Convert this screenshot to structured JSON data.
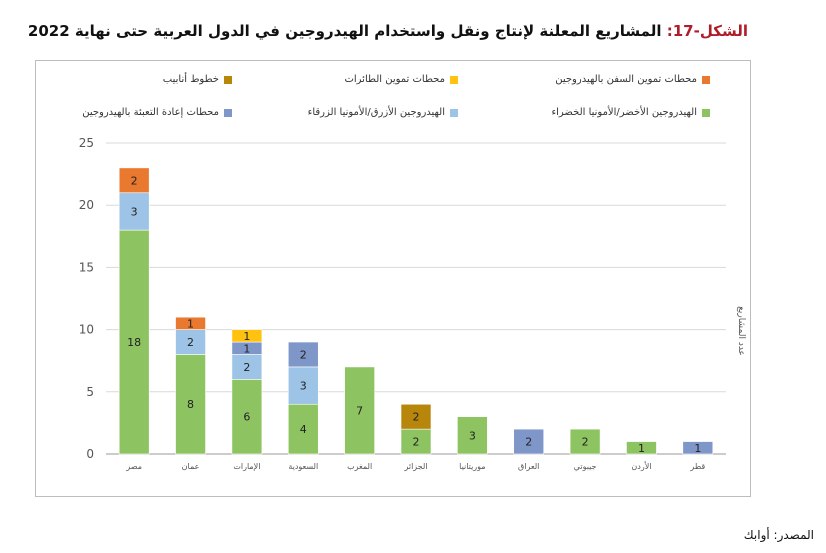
{
  "title": {
    "fig_label": "الشكل-17:",
    "text": "المشاريع المعلنة لإنتاج ونقل واستخدام الهيدروجين في الدول العربية حتى نهاية 2022"
  },
  "source": "المصدر: أوابك",
  "chart_data": {
    "type": "bar",
    "stacked": true,
    "ylabel": "عدد المشاريع",
    "ylim": [
      0,
      25
    ],
    "yticks": [
      0,
      5,
      10,
      15,
      20,
      25
    ],
    "grid": true,
    "legend_position": "top",
    "categories": [
      "مصر",
      "عمان",
      "الإمارات",
      "السعودية",
      "المغرب",
      "الجزائر",
      "موريتانيا",
      "العراق",
      "جيبوتي",
      "الأردن",
      "قطر"
    ],
    "series": [
      {
        "name": "الهيدروجين الأخضر/الأمونيا الخضراء",
        "color": "#8dc461",
        "values": [
          18,
          8,
          6,
          4,
          7,
          2,
          3,
          0,
          2,
          1,
          0
        ]
      },
      {
        "name": "الهيدروجين الأزرق/الأمونيا الزرقاء",
        "color": "#9dc3e6",
        "values": [
          3,
          2,
          2,
          3,
          0,
          0,
          0,
          0,
          0,
          0,
          0
        ]
      },
      {
        "name": "محطات إعادة التعبئة بالهيدروجين",
        "color": "#7f96c8",
        "values": [
          0,
          0,
          1,
          2,
          0,
          0,
          0,
          2,
          0,
          0,
          1
        ]
      },
      {
        "name": "محطات تموين السفن بالهيدروجين",
        "color": "#e8792f",
        "values": [
          2,
          1,
          0,
          0,
          0,
          0,
          0,
          0,
          0,
          0,
          0
        ]
      },
      {
        "name": "محطات تموين الطائرات",
        "color": "#ffc20e",
        "values": [
          0,
          0,
          1,
          0,
          0,
          0,
          0,
          0,
          0,
          0,
          0
        ]
      },
      {
        "name": "خطوط أنابيب",
        "color": "#b8860b",
        "values": [
          0,
          0,
          0,
          0,
          0,
          2,
          0,
          0,
          0,
          0,
          0
        ]
      }
    ]
  }
}
